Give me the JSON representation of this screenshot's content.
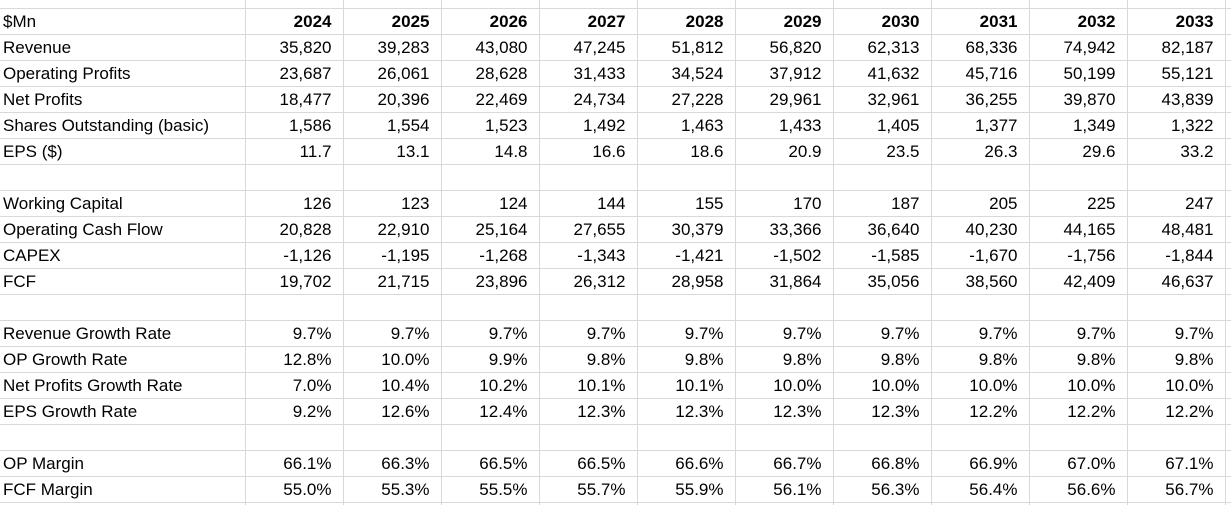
{
  "sheet": {
    "unit_label": "$Mn",
    "years": [
      "2024",
      "2025",
      "2026",
      "2027",
      "2028",
      "2029",
      "2030",
      "2031",
      "2032",
      "2033"
    ],
    "gridline_color": "#d9d9d9",
    "text_color": "#000000",
    "rows": [
      {
        "label": "Revenue",
        "values": [
          "35,820",
          "39,283",
          "43,080",
          "47,245",
          "51,812",
          "56,820",
          "62,313",
          "68,336",
          "74,942",
          "82,187"
        ]
      },
      {
        "label": "Operating Profits",
        "values": [
          "23,687",
          "26,061",
          "28,628",
          "31,433",
          "34,524",
          "37,912",
          "41,632",
          "45,716",
          "50,199",
          "55,121"
        ]
      },
      {
        "label": "Net Profits",
        "values": [
          "18,477",
          "20,396",
          "22,469",
          "24,734",
          "27,228",
          "29,961",
          "32,961",
          "36,255",
          "39,870",
          "43,839"
        ]
      },
      {
        "label": "Shares Outstanding (basic)",
        "values": [
          "1,586",
          "1,554",
          "1,523",
          "1,492",
          "1,463",
          "1,433",
          "1,405",
          "1,377",
          "1,349",
          "1,322"
        ]
      },
      {
        "label": "EPS ($)",
        "values": [
          "11.7",
          "13.1",
          "14.8",
          "16.6",
          "18.6",
          "20.9",
          "23.5",
          "26.3",
          "29.6",
          "33.2"
        ]
      },
      {
        "label": "",
        "values": [
          "",
          "",
          "",
          "",
          "",
          "",
          "",
          "",
          "",
          ""
        ]
      },
      {
        "label": "Working Capital",
        "values": [
          "126",
          "123",
          "124",
          "144",
          "155",
          "170",
          "187",
          "205",
          "225",
          "247"
        ]
      },
      {
        "label": "Operating Cash Flow",
        "values": [
          "20,828",
          "22,910",
          "25,164",
          "27,655",
          "30,379",
          "33,366",
          "36,640",
          "40,230",
          "44,165",
          "48,481"
        ]
      },
      {
        "label": "CAPEX",
        "values": [
          "-1,126",
          "-1,195",
          "-1,268",
          "-1,343",
          "-1,421",
          "-1,502",
          "-1,585",
          "-1,670",
          "-1,756",
          "-1,844"
        ]
      },
      {
        "label": "FCF",
        "values": [
          "19,702",
          "21,715",
          "23,896",
          "26,312",
          "28,958",
          "31,864",
          "35,056",
          "38,560",
          "42,409",
          "46,637"
        ]
      },
      {
        "label": "",
        "values": [
          "",
          "",
          "",
          "",
          "",
          "",
          "",
          "",
          "",
          ""
        ]
      },
      {
        "label": "Revenue Growth Rate",
        "values": [
          "9.7%",
          "9.7%",
          "9.7%",
          "9.7%",
          "9.7%",
          "9.7%",
          "9.7%",
          "9.7%",
          "9.7%",
          "9.7%"
        ]
      },
      {
        "label": "OP Growth Rate",
        "values": [
          "12.8%",
          "10.0%",
          "9.9%",
          "9.8%",
          "9.8%",
          "9.8%",
          "9.8%",
          "9.8%",
          "9.8%",
          "9.8%"
        ]
      },
      {
        "label": "Net Profits Growth Rate",
        "values": [
          "7.0%",
          "10.4%",
          "10.2%",
          "10.1%",
          "10.1%",
          "10.0%",
          "10.0%",
          "10.0%",
          "10.0%",
          "10.0%"
        ]
      },
      {
        "label": "EPS Growth Rate",
        "values": [
          "9.2%",
          "12.6%",
          "12.4%",
          "12.3%",
          "12.3%",
          "12.3%",
          "12.3%",
          "12.2%",
          "12.2%",
          "12.2%"
        ]
      },
      {
        "label": "",
        "values": [
          "",
          "",
          "",
          "",
          "",
          "",
          "",
          "",
          "",
          ""
        ]
      },
      {
        "label": "OP Margin",
        "values": [
          "66.1%",
          "66.3%",
          "66.5%",
          "66.5%",
          "66.6%",
          "66.7%",
          "66.8%",
          "66.9%",
          "67.0%",
          "67.1%"
        ]
      },
      {
        "label": "FCF Margin",
        "values": [
          "55.0%",
          "55.3%",
          "55.5%",
          "55.7%",
          "55.9%",
          "56.1%",
          "56.3%",
          "56.4%",
          "56.6%",
          "56.7%"
        ]
      }
    ]
  }
}
